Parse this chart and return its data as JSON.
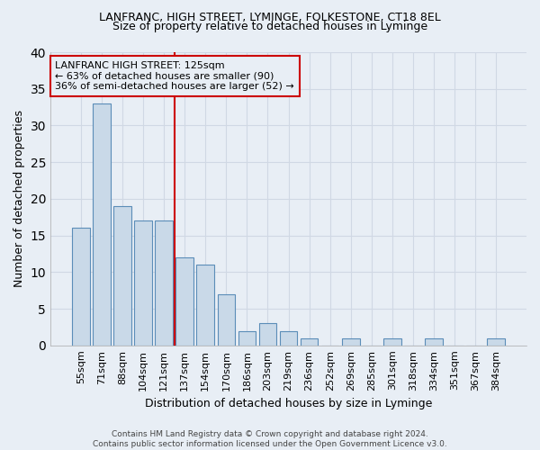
{
  "title1": "LANFRANC, HIGH STREET, LYMINGE, FOLKESTONE, CT18 8EL",
  "title2": "Size of property relative to detached houses in Lyminge",
  "xlabel": "Distribution of detached houses by size in Lyminge",
  "ylabel": "Number of detached properties",
  "categories": [
    "55sqm",
    "71sqm",
    "88sqm",
    "104sqm",
    "121sqm",
    "137sqm",
    "154sqm",
    "170sqm",
    "186sqm",
    "203sqm",
    "219sqm",
    "236sqm",
    "252sqm",
    "269sqm",
    "285sqm",
    "301sqm",
    "318sqm",
    "334sqm",
    "351sqm",
    "367sqm",
    "384sqm"
  ],
  "values": [
    16,
    33,
    19,
    17,
    17,
    12,
    11,
    7,
    2,
    3,
    2,
    1,
    0,
    1,
    0,
    1,
    0,
    1,
    0,
    0,
    1
  ],
  "bar_color": "#c9d9e8",
  "bar_edge_color": "#5b8db8",
  "grid_color": "#d0d8e4",
  "bg_color": "#e8eef5",
  "annotation_line1": "LANFRANC HIGH STREET: 125sqm",
  "annotation_line2": "← 63% of detached houses are smaller (90)",
  "annotation_line3": "36% of semi-detached houses are larger (52) →",
  "vline_color": "#cc0000",
  "annotation_box_edgecolor": "#cc0000",
  "footer": "Contains HM Land Registry data © Crown copyright and database right 2024.\nContains public sector information licensed under the Open Government Licence v3.0.",
  "ylim": [
    0,
    40
  ],
  "yticks": [
    0,
    5,
    10,
    15,
    20,
    25,
    30,
    35,
    40
  ],
  "title1_fontsize": 9,
  "title2_fontsize": 9,
  "ylabel_fontsize": 9,
  "xlabel_fontsize": 9,
  "tick_fontsize": 8,
  "annotation_fontsize": 8,
  "footer_fontsize": 6.5
}
